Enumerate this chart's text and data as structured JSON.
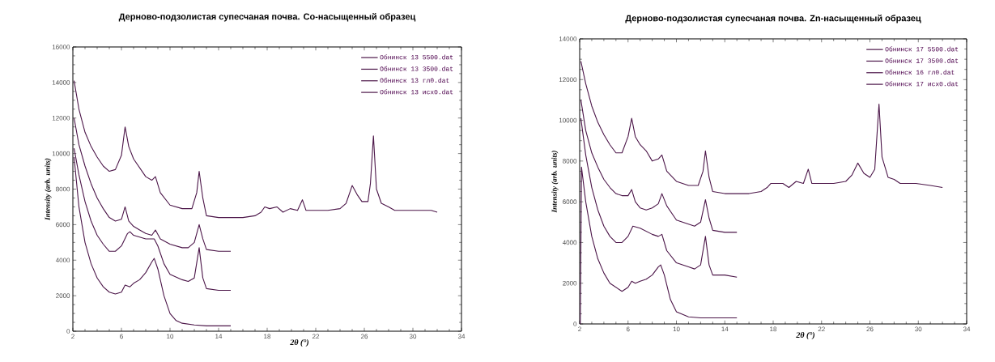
{
  "chart_data": [
    {
      "type": "line",
      "title": "Дерново-подзолистая супесчаная почва. Co-насыщенный образец",
      "xlabel": "2θ (°)",
      "ylabel": "Intensity (arb. units)",
      "xlim": [
        2,
        34
      ],
      "ylim": [
        0,
        16000
      ],
      "xticks": [
        2,
        6,
        10,
        14,
        18,
        22,
        26,
        30,
        34
      ],
      "yticks": [
        0,
        2000,
        4000,
        6000,
        8000,
        10000,
        12000,
        14000,
        16000
      ],
      "legend": "top right",
      "series": [
        {
          "name": "Обнинск 13 5500.dat",
          "color": "#4b1548",
          "x": [
            2.1,
            2.5,
            3,
            3.5,
            4,
            4.5,
            5,
            5.5,
            6,
            6.3,
            6.6,
            7,
            7.5,
            8,
            8.5,
            8.8,
            9.2,
            10,
            11,
            11.8,
            12.2,
            12.4,
            12.7,
            13,
            14,
            16,
            17,
            17.5,
            17.8,
            18.2,
            18.8,
            19.3,
            19.9,
            20.5,
            20.9,
            21.2,
            22,
            23,
            24,
            24.5,
            25,
            25.4,
            25.8,
            26.3,
            26.5,
            26.75,
            27,
            27.4,
            28,
            28.5,
            29.8,
            31,
            31.5,
            32
          ],
          "values": [
            14100,
            12500,
            11200,
            10400,
            9800,
            9300,
            9000,
            9100,
            9900,
            11500,
            10400,
            9700,
            9200,
            8700,
            8500,
            8700,
            7800,
            7100,
            6900,
            6900,
            7800,
            9000,
            7500,
            6500,
            6400,
            6400,
            6500,
            6700,
            7000,
            6900,
            7000,
            6700,
            6900,
            6800,
            7400,
            6800,
            6800,
            6800,
            6900,
            7200,
            8200,
            7700,
            7300,
            7300,
            8300,
            11000,
            8000,
            7200,
            7000,
            6800,
            6800,
            6800,
            6800,
            6700
          ]
        },
        {
          "name": "Обнинск 13 3500.dat",
          "color": "#4b1548",
          "x": [
            2.1,
            2.5,
            3,
            3.5,
            4,
            4.5,
            5,
            5.5,
            6,
            6.3,
            6.6,
            7,
            7.5,
            8,
            8.5,
            8.8,
            9.2,
            10,
            11,
            11.5,
            12,
            12.4,
            12.7,
            13,
            14,
            15
          ],
          "values": [
            12000,
            10500,
            9300,
            8300,
            7500,
            6900,
            6400,
            6200,
            6300,
            7000,
            6200,
            5900,
            5700,
            5500,
            5400,
            5700,
            5200,
            4900,
            4700,
            4700,
            5000,
            6000,
            5200,
            4600,
            4500,
            4500
          ]
        },
        {
          "name": "Обнинск 13 гл0.dat",
          "color": "#4b1548",
          "x": [
            2.1,
            2.5,
            3,
            3.5,
            4,
            4.5,
            5,
            5.5,
            6,
            6.5,
            6.7,
            7,
            8,
            8.7,
            9,
            9.5,
            10,
            11,
            11.5,
            12,
            12.4,
            12.7,
            13,
            14,
            15
          ],
          "values": [
            10300,
            8800,
            7300,
            6200,
            5400,
            4900,
            4500,
            4500,
            4800,
            5500,
            5600,
            5400,
            5200,
            5200,
            4800,
            3800,
            3200,
            2900,
            2800,
            3000,
            4700,
            3000,
            2400,
            2300,
            2300
          ]
        },
        {
          "name": "Обнинск 13 исх0.dat",
          "color": "#4b1548",
          "x": [
            2.1,
            2.5,
            3,
            3.5,
            4,
            4.5,
            5,
            5.5,
            6,
            6.3,
            6.7,
            7,
            7.5,
            8,
            8.5,
            8.7,
            9,
            9.5,
            10,
            10.5,
            11,
            12,
            13,
            14,
            15
          ],
          "values": [
            9800,
            7000,
            5000,
            3800,
            3000,
            2500,
            2200,
            2100,
            2200,
            2600,
            2500,
            2700,
            2900,
            3300,
            3900,
            4100,
            3500,
            2000,
            1000,
            600,
            450,
            350,
            300,
            300,
            300
          ]
        }
      ]
    },
    {
      "type": "line",
      "title": "Дерново-подзолистая супесчаная почва. Zn-насыщенный образец",
      "xlabel": "2θ (°)",
      "ylabel": "Intensity (arb. units)",
      "xlim": [
        2,
        34
      ],
      "ylim": [
        0,
        14000
      ],
      "xticks": [
        2,
        6,
        10,
        14,
        18,
        22,
        26,
        30,
        34
      ],
      "yticks": [
        0,
        2000,
        4000,
        6000,
        8000,
        10000,
        12000,
        14000
      ],
      "legend": "top right",
      "series": [
        {
          "name": "Обнинск 17 5500.dat",
          "color": "#4b1548",
          "x": [
            2.1,
            2.5,
            3,
            3.5,
            4,
            4.5,
            5,
            5.5,
            6,
            6.3,
            6.6,
            7,
            7.5,
            8,
            8.5,
            8.8,
            9.2,
            10,
            11,
            11.8,
            12.2,
            12.4,
            12.7,
            13,
            14,
            16,
            17,
            17.5,
            17.8,
            18.3,
            18.8,
            19.3,
            19.9,
            20.5,
            20.9,
            21.2,
            22,
            23,
            24,
            24.5,
            25,
            25.5,
            26,
            26.4,
            26.75,
            27,
            27.5,
            28,
            28.5,
            29.8,
            31,
            32
          ],
          "values": [
            12900,
            11800,
            10700,
            9900,
            9300,
            8800,
            8400,
            8400,
            9200,
            10100,
            9200,
            8800,
            8500,
            8000,
            8100,
            8300,
            7500,
            7000,
            6800,
            6800,
            7500,
            8500,
            7200,
            6500,
            6400,
            6400,
            6500,
            6700,
            6900,
            6900,
            6900,
            6700,
            7000,
            6900,
            7600,
            6900,
            6900,
            6900,
            7000,
            7300,
            7900,
            7400,
            7200,
            7600,
            10800,
            8200,
            7200,
            7100,
            6900,
            6900,
            6800,
            6700
          ]
        },
        {
          "name": "Обнинск 17 3500.dat",
          "color": "#4b1548",
          "x": [
            2.1,
            2.5,
            3,
            3.5,
            4,
            4.5,
            5,
            5.5,
            6,
            6.3,
            6.6,
            7,
            7.5,
            8,
            8.5,
            8.8,
            9.2,
            10,
            11,
            11.5,
            12,
            12.4,
            12.7,
            13,
            14,
            15
          ],
          "values": [
            11000,
            9500,
            8400,
            7700,
            7100,
            6700,
            6400,
            6300,
            6300,
            6600,
            6000,
            5700,
            5600,
            5700,
            5900,
            6400,
            5800,
            5100,
            4900,
            4800,
            5000,
            6100,
            5200,
            4600,
            4500,
            4500
          ]
        },
        {
          "name": "Обнинск 16 гл0.dat",
          "color": "#4b1548",
          "x": [
            2.1,
            2.5,
            3,
            3.5,
            4,
            4.5,
            5,
            5.5,
            6,
            6.4,
            7,
            8,
            8.5,
            8.8,
            9.2,
            10,
            11,
            11.5,
            12,
            12.4,
            12.7,
            13,
            14,
            15
          ],
          "values": [
            10100,
            8300,
            6700,
            5600,
            4800,
            4300,
            4000,
            4000,
            4300,
            4800,
            4700,
            4400,
            4300,
            4400,
            3600,
            3000,
            2800,
            2700,
            2900,
            4300,
            2900,
            2400,
            2400,
            2300
          ]
        },
        {
          "name": "Обнинск 17 исх0.dat",
          "color": "#4b1548",
          "x": [
            2.05,
            2.15,
            2.5,
            3,
            3.5,
            4,
            4.5,
            5,
            5.5,
            6,
            6.3,
            6.6,
            7,
            7.5,
            8,
            8.5,
            8.7,
            9,
            9.5,
            10,
            11,
            12,
            13,
            14,
            15
          ],
          "values": [
            0,
            7700,
            6000,
            4300,
            3200,
            2500,
            2000,
            1800,
            1600,
            1800,
            2100,
            2000,
            2100,
            2200,
            2400,
            2800,
            2900,
            2400,
            1200,
            600,
            350,
            300,
            300,
            300,
            300
          ]
        }
      ]
    }
  ]
}
